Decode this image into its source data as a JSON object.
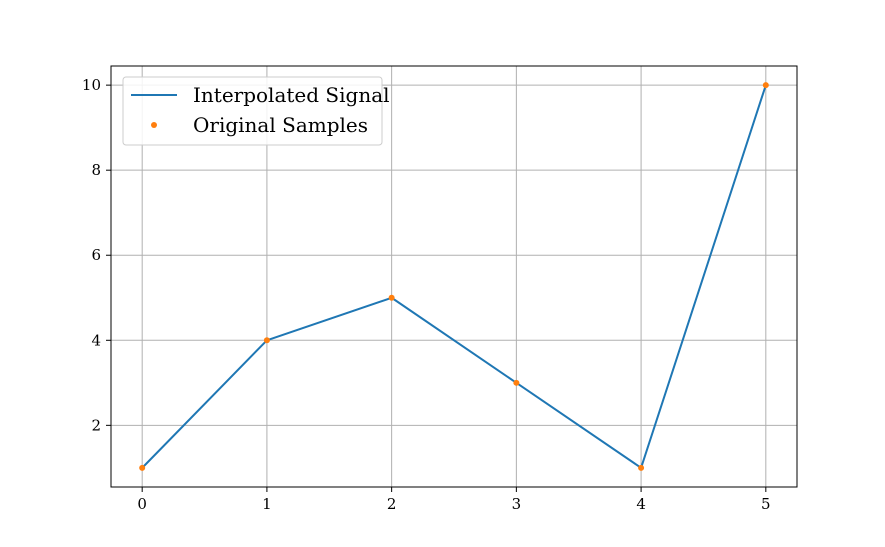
{
  "chart_data": {
    "type": "line",
    "title": "",
    "xlabel": "",
    "ylabel": "",
    "xlim": [
      -0.25,
      5.25
    ],
    "ylim": [
      0.55,
      10.45
    ],
    "x_ticks": [
      0,
      1,
      2,
      3,
      4,
      5
    ],
    "y_ticks": [
      2,
      4,
      6,
      8,
      10
    ],
    "grid": true,
    "legend_position": "top-left",
    "series": [
      {
        "name": "Interpolated Signal",
        "style": "line",
        "color": "#1f77b4",
        "x": [
          0,
          1,
          2,
          3,
          4,
          5
        ],
        "y": [
          1,
          4,
          5,
          3,
          1,
          10
        ]
      },
      {
        "name": "Original Samples",
        "style": "points",
        "color": "#ff7f0e",
        "x": [
          0,
          1,
          2,
          3,
          4,
          5
        ],
        "y": [
          1,
          4,
          5,
          3,
          1,
          10
        ]
      }
    ]
  }
}
